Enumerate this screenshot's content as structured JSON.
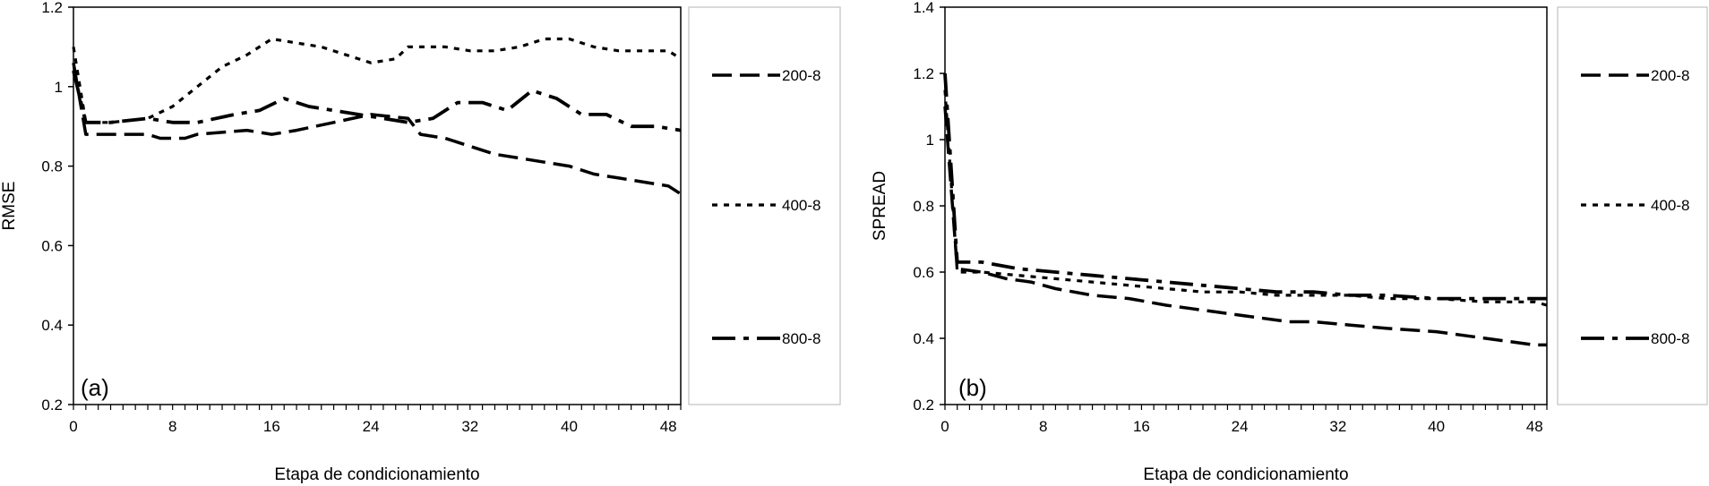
{
  "colors": {
    "line": "#000000",
    "legend_border": "#c0c0c0",
    "background": "#ffffff"
  },
  "chart_data": [
    {
      "type": "line",
      "panel_label": "(a)",
      "xlabel": "Etapa de condicionamiento",
      "ylabel": "RMSE",
      "xlim": [
        0,
        49
      ],
      "ylim": [
        0.2,
        1.2
      ],
      "x_ticks": [
        0,
        8,
        16,
        24,
        32,
        40,
        48
      ],
      "y_ticks": [
        0.2,
        0.4,
        0.6,
        0.8,
        1.0,
        1.2
      ],
      "y_tick_labels": [
        "0.2",
        "0.4",
        "0.6",
        "0.8",
        "1",
        "1.2"
      ],
      "grid": false,
      "legend_position": "right",
      "series": [
        {
          "name": "200-8",
          "dash": "dash",
          "x": [
            0,
            1,
            4,
            6,
            7,
            9,
            10,
            14,
            16,
            18,
            21,
            24,
            27,
            28,
            30,
            32,
            34,
            36,
            38,
            40,
            42,
            44,
            46,
            48,
            49
          ],
          "y": [
            1.06,
            0.88,
            0.88,
            0.88,
            0.87,
            0.87,
            0.88,
            0.89,
            0.88,
            0.89,
            0.91,
            0.93,
            0.92,
            0.88,
            0.87,
            0.85,
            0.83,
            0.82,
            0.81,
            0.8,
            0.78,
            0.77,
            0.76,
            0.75,
            0.73
          ]
        },
        {
          "name": "400-8",
          "dash": "dot",
          "x": [
            0,
            1,
            3,
            6,
            8,
            10,
            12,
            14,
            16,
            18,
            20,
            22,
            24,
            26,
            27,
            30,
            32,
            34,
            36,
            38,
            40,
            42,
            44,
            46,
            48,
            49
          ],
          "y": [
            1.1,
            0.91,
            0.91,
            0.92,
            0.95,
            1.0,
            1.05,
            1.08,
            1.12,
            1.11,
            1.1,
            1.08,
            1.06,
            1.07,
            1.1,
            1.1,
            1.09,
            1.09,
            1.1,
            1.12,
            1.12,
            1.1,
            1.09,
            1.09,
            1.09,
            1.07
          ]
        },
        {
          "name": "800-8",
          "dash": "dashdot",
          "x": [
            0,
            1,
            3,
            6,
            8,
            10,
            13,
            15,
            17,
            19,
            21,
            23,
            25,
            27,
            29,
            31,
            33,
            35,
            37,
            39,
            41,
            43,
            45,
            47,
            49
          ],
          "y": [
            1.04,
            0.91,
            0.91,
            0.92,
            0.91,
            0.91,
            0.93,
            0.94,
            0.97,
            0.95,
            0.94,
            0.93,
            0.92,
            0.91,
            0.92,
            0.96,
            0.96,
            0.94,
            0.99,
            0.97,
            0.93,
            0.93,
            0.9,
            0.9,
            0.89
          ]
        }
      ]
    },
    {
      "type": "line",
      "panel_label": "(b)",
      "xlabel": "Etapa de condicionamiento",
      "ylabel": "SPREAD",
      "xlim": [
        0,
        49
      ],
      "ylim": [
        0.2,
        1.4
      ],
      "x_ticks": [
        0,
        8,
        16,
        24,
        32,
        40,
        48
      ],
      "y_ticks": [
        0.2,
        0.4,
        0.6,
        0.8,
        1.0,
        1.2,
        1.4
      ],
      "y_tick_labels": [
        "0.2",
        "0.4",
        "0.6",
        "0.8",
        "1",
        "1.2",
        "1.4"
      ],
      "grid": false,
      "legend_position": "right",
      "series": [
        {
          "name": "200-8",
          "dash": "dash",
          "x": [
            0,
            1,
            3,
            5,
            7,
            9,
            12,
            15,
            18,
            20,
            22,
            24,
            26,
            28,
            30,
            33,
            36,
            40,
            42,
            44,
            46,
            48,
            49
          ],
          "y": [
            1.1,
            0.61,
            0.6,
            0.58,
            0.57,
            0.55,
            0.53,
            0.52,
            0.5,
            0.49,
            0.48,
            0.47,
            0.46,
            0.45,
            0.45,
            0.44,
            0.43,
            0.42,
            0.41,
            0.4,
            0.39,
            0.38,
            0.38
          ]
        },
        {
          "name": "400-8",
          "dash": "dot",
          "x": [
            0,
            1,
            3,
            6,
            9,
            12,
            15,
            18,
            21,
            24,
            27,
            30,
            33,
            36,
            40,
            44,
            48,
            49
          ],
          "y": [
            1.15,
            0.6,
            0.6,
            0.59,
            0.58,
            0.57,
            0.56,
            0.55,
            0.54,
            0.54,
            0.53,
            0.53,
            0.53,
            0.52,
            0.52,
            0.51,
            0.51,
            0.5
          ]
        },
        {
          "name": "800-8",
          "dash": "dashdot",
          "x": [
            0,
            1,
            3,
            6,
            9,
            12,
            15,
            18,
            21,
            24,
            27,
            30,
            33,
            36,
            40,
            44,
            48,
            49
          ],
          "y": [
            1.2,
            0.63,
            0.63,
            0.61,
            0.6,
            0.59,
            0.58,
            0.57,
            0.56,
            0.55,
            0.54,
            0.54,
            0.53,
            0.53,
            0.52,
            0.52,
            0.52,
            0.52
          ]
        }
      ]
    }
  ]
}
